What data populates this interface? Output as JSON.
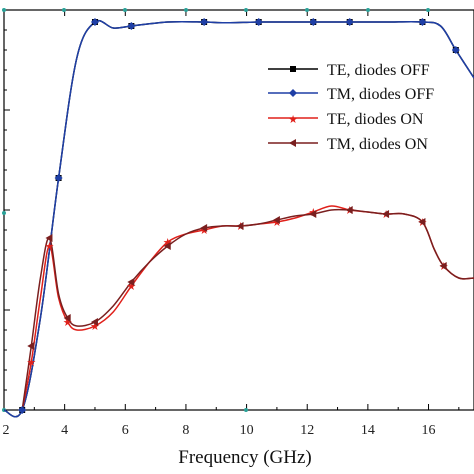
{
  "chart_data": {
    "type": "line",
    "xlabel": "Frequency (GHz)",
    "ylabel": "",
    "title": "",
    "xlim": [
      2,
      17.5
    ],
    "ylim": [
      0,
      1
    ],
    "x_ticks": [
      "2",
      "4",
      "6",
      "8",
      "10",
      "12",
      "14",
      "16"
    ],
    "grid": false,
    "legend_position": "top-right",
    "series": [
      {
        "name": "TE, diodes OFF",
        "color": "#000000",
        "marker": "square",
        "x": [
          2.0,
          2.6,
          3.2,
          3.8,
          4.4,
          5.0,
          5.6,
          6.2,
          7.4,
          8.6,
          9.2,
          10.4,
          11.0,
          12.2,
          12.8,
          13.4,
          14.6,
          15.8,
          16.4,
          16.9,
          17.5
        ],
        "y": [
          0.0,
          0.0,
          0.23,
          0.58,
          0.88,
          0.97,
          0.955,
          0.96,
          0.97,
          0.97,
          0.968,
          0.97,
          0.97,
          0.97,
          0.97,
          0.97,
          0.97,
          0.97,
          0.96,
          0.9,
          0.83
        ]
      },
      {
        "name": "TM, diodes OFF",
        "color": "#1f3fa6",
        "marker": "diamond",
        "x": [
          2.0,
          2.6,
          3.2,
          3.8,
          4.4,
          5.0,
          5.6,
          6.2,
          7.4,
          8.6,
          9.2,
          10.4,
          11.0,
          12.2,
          12.8,
          13.4,
          14.6,
          15.8,
          16.4,
          16.9,
          17.5
        ],
        "y": [
          0.0,
          0.0,
          0.23,
          0.58,
          0.88,
          0.97,
          0.955,
          0.96,
          0.97,
          0.97,
          0.968,
          0.97,
          0.97,
          0.97,
          0.97,
          0.97,
          0.97,
          0.97,
          0.96,
          0.9,
          0.83
        ]
      },
      {
        "name": "TE, diodes ON",
        "color": "#e0201a",
        "marker": "star",
        "x": [
          2.6,
          2.9,
          3.2,
          3.5,
          3.8,
          4.1,
          4.4,
          5.0,
          5.6,
          6.2,
          6.8,
          7.4,
          8.0,
          8.6,
          9.2,
          9.8,
          10.4,
          11.0,
          11.6,
          12.2,
          12.8,
          13.4,
          14.0,
          14.6,
          15.2,
          15.8,
          16.2,
          16.5,
          17.0,
          17.5
        ],
        "y": [
          0.0,
          0.12,
          0.28,
          0.41,
          0.28,
          0.22,
          0.2,
          0.21,
          0.245,
          0.31,
          0.37,
          0.42,
          0.44,
          0.45,
          0.46,
          0.46,
          0.465,
          0.47,
          0.48,
          0.495,
          0.51,
          0.5,
          0.495,
          0.49,
          0.49,
          0.47,
          0.4,
          0.36,
          0.33,
          0.33
        ]
      },
      {
        "name": "TM, diodes ON",
        "color": "#7a1f1f",
        "marker": "triangle-left",
        "x": [
          2.6,
          2.9,
          3.2,
          3.5,
          3.8,
          4.1,
          4.4,
          5.0,
          5.6,
          6.2,
          6.8,
          7.4,
          8.0,
          8.6,
          9.2,
          9.8,
          10.4,
          11.0,
          11.6,
          12.2,
          12.8,
          13.4,
          14.0,
          14.6,
          15.2,
          15.8,
          16.2,
          16.5,
          17.0,
          17.5
        ],
        "y": [
          0.0,
          0.16,
          0.33,
          0.43,
          0.29,
          0.23,
          0.21,
          0.22,
          0.26,
          0.32,
          0.37,
          0.41,
          0.44,
          0.455,
          0.46,
          0.46,
          0.465,
          0.475,
          0.485,
          0.49,
          0.5,
          0.5,
          0.495,
          0.49,
          0.49,
          0.47,
          0.4,
          0.36,
          0.33,
          0.33
        ]
      }
    ]
  }
}
